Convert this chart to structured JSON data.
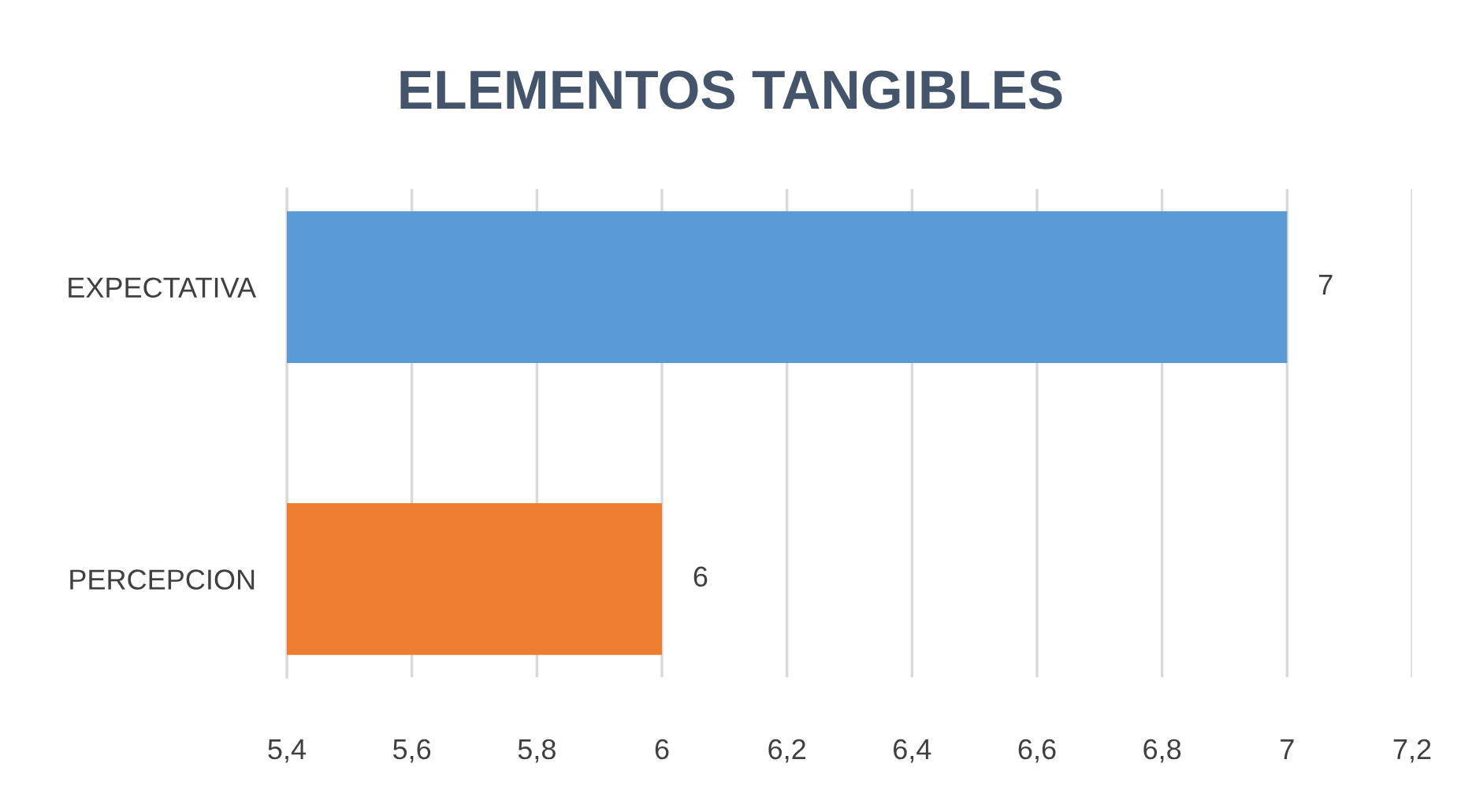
{
  "chart_data": {
    "type": "bar",
    "orientation": "horizontal",
    "title": "ELEMENTOS TANGIBLES",
    "categories": [
      "EXPECTATIVA",
      "PERCEPCION"
    ],
    "values": [
      7,
      6
    ],
    "colors": [
      "#5b9bd5",
      "#ed7d31"
    ],
    "xlim": [
      5.4,
      7.2
    ],
    "xticks": [
      {
        "value": 5.4,
        "label": "5,4"
      },
      {
        "value": 5.6,
        "label": "5,6"
      },
      {
        "value": 5.8,
        "label": "5,8"
      },
      6,
      {
        "value": 6.2,
        "label": "6,2"
      },
      {
        "value": 6.4,
        "label": "6,4"
      },
      {
        "value": 6.6,
        "label": "6,6"
      },
      {
        "value": 6.8,
        "label": "6,8"
      },
      7,
      {
        "value": 7.2,
        "label": "7,2"
      }
    ],
    "grid": "x",
    "data_labels": true,
    "legend": false
  }
}
